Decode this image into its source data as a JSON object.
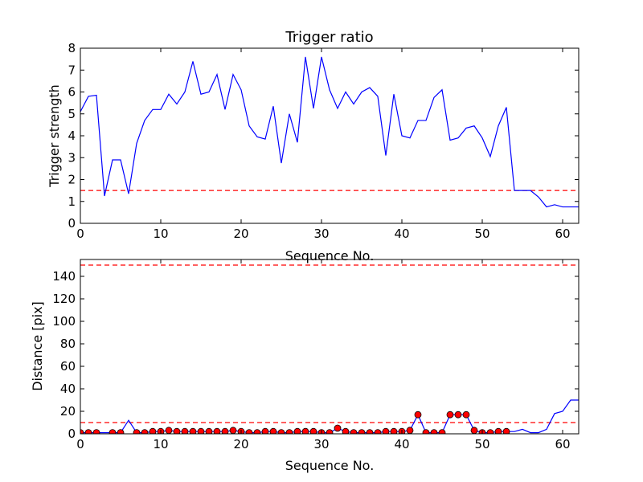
{
  "chart_data": [
    {
      "type": "line",
      "title": "Trigger ratio",
      "xlabel": "Sequence No.",
      "ylabel": "Trigger strength",
      "xlim": [
        0,
        62
      ],
      "ylim": [
        0,
        8
      ],
      "xticks": [
        0,
        10,
        20,
        30,
        40,
        50,
        60
      ],
      "yticks": [
        0,
        1,
        2,
        3,
        4,
        5,
        6,
        7,
        8
      ],
      "grid": false,
      "threshold": 1.5,
      "series": [
        {
          "color": "#0000ff",
          "x": [
            0,
            1,
            2,
            3,
            4,
            5,
            6,
            7,
            8,
            9,
            10,
            11,
            12,
            13,
            14,
            15,
            16,
            17,
            18,
            19,
            20,
            21,
            22,
            23,
            24,
            25,
            26,
            27,
            28,
            29,
            30,
            31,
            32,
            33,
            34,
            35,
            36,
            37,
            38,
            39,
            40,
            41,
            42,
            43,
            44,
            45,
            46,
            47,
            48,
            49,
            50,
            51,
            52,
            53,
            54,
            55,
            56,
            57,
            58,
            59,
            60,
            61,
            62
          ],
          "values": [
            5.1,
            5.8,
            5.85,
            1.25,
            2.9,
            2.9,
            1.35,
            3.65,
            4.7,
            5.2,
            5.2,
            5.9,
            5.45,
            6.0,
            7.4,
            5.9,
            6.0,
            6.8,
            5.2,
            6.8,
            6.1,
            4.45,
            3.95,
            3.85,
            5.35,
            2.75,
            5.0,
            3.7,
            7.6,
            5.25,
            7.6,
            6.1,
            5.25,
            6.0,
            5.45,
            6.0,
            6.2,
            5.8,
            3.1,
            5.9,
            4.0,
            3.9,
            4.7,
            4.7,
            5.75,
            6.1,
            3.8,
            3.9,
            4.35,
            4.45,
            3.9,
            3.05,
            4.45,
            5.3,
            1.5,
            1.5,
            1.5,
            1.2,
            0.75,
            0.85,
            0.75,
            0.75,
            0.75
          ]
        }
      ],
      "threshold_color": "#ff0000"
    },
    {
      "type": "line",
      "title": "",
      "xlabel": "Sequence No.",
      "ylabel": "Distance [pix]",
      "xlim": [
        0,
        62
      ],
      "ylim": [
        0,
        155
      ],
      "xticks": [
        0,
        10,
        20,
        30,
        40,
        50,
        60
      ],
      "yticks": [
        0,
        20,
        40,
        60,
        80,
        100,
        120,
        140
      ],
      "grid": false,
      "thresholds": [
        10,
        150
      ],
      "series": [
        {
          "color": "#0000ff",
          "x": [
            0,
            1,
            2,
            3,
            4,
            5,
            6,
            7,
            8,
            9,
            10,
            11,
            12,
            13,
            14,
            15,
            16,
            17,
            18,
            19,
            20,
            21,
            22,
            23,
            24,
            25,
            26,
            27,
            28,
            29,
            30,
            31,
            32,
            33,
            34,
            35,
            36,
            37,
            38,
            39,
            40,
            41,
            42,
            43,
            44,
            45,
            46,
            47,
            48,
            49,
            50,
            51,
            52,
            53,
            54,
            55,
            56,
            57,
            58,
            59,
            60,
            61,
            62
          ],
          "values": [
            1,
            1,
            1,
            1,
            1,
            1,
            12,
            1,
            1,
            2,
            2,
            3,
            2,
            2,
            2,
            2,
            2,
            2,
            2,
            3,
            2,
            1,
            1,
            2,
            2,
            1,
            1,
            2,
            2,
            2,
            1,
            1,
            5,
            2,
            1,
            1,
            1,
            1,
            2,
            2,
            2,
            3,
            17,
            1,
            1,
            1,
            17,
            17,
            17,
            3,
            1,
            1,
            2,
            2,
            2,
            4,
            1,
            1,
            4,
            18,
            20,
            30,
            30
          ]
        },
        {
          "name": "",
          "color": "#ff0000",
          "marker": "circle",
          "x": [
            0,
            1,
            2,
            4,
            5,
            7,
            8,
            9,
            10,
            11,
            12,
            13,
            14,
            15,
            16,
            17,
            18,
            19,
            20,
            21,
            22,
            23,
            24,
            25,
            26,
            27,
            28,
            29,
            30,
            31,
            32,
            33,
            34,
            35,
            36,
            37,
            38,
            39,
            40,
            41,
            42,
            43,
            44,
            45,
            46,
            47,
            48,
            49,
            50,
            51,
            52,
            53
          ],
          "values": [
            1,
            1,
            1,
            1,
            1,
            1,
            1,
            2,
            2,
            3,
            2,
            2,
            2,
            2,
            2,
            2,
            2,
            3,
            2,
            1,
            1,
            2,
            2,
            1,
            1,
            2,
            2,
            2,
            1,
            1,
            5,
            2,
            1,
            1,
            1,
            1,
            2,
            2,
            2,
            3,
            17,
            1,
            1,
            1,
            17,
            17,
            17,
            3,
            1,
            1,
            2,
            2
          ]
        }
      ],
      "threshold_color": "#ff0000"
    }
  ]
}
